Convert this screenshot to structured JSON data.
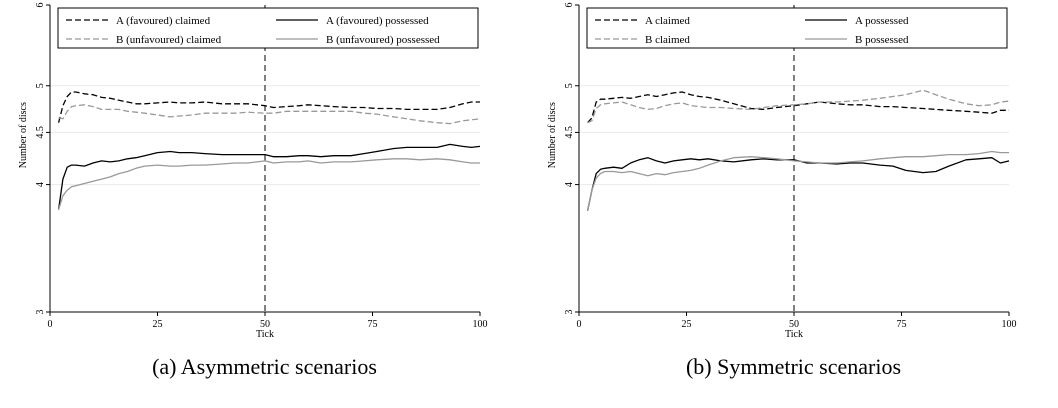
{
  "captions": [
    "(a) Asymmetric scenarios",
    "(b) Symmetric scenarios"
  ],
  "chart_data": [
    {
      "type": "line",
      "xlabel": "Tick",
      "ylabel": "Number of discs",
      "xlim": [
        0,
        100
      ],
      "ylim": [
        3,
        6
      ],
      "y_scale": "log",
      "xticks": [
        0,
        25,
        50,
        75,
        100
      ],
      "yticks": [
        3,
        4,
        4.5,
        5,
        6
      ],
      "grid": true,
      "legend_placement": "top",
      "reference_line": {
        "x": 50,
        "style": "dashed",
        "color": "#000000"
      },
      "series": [
        {
          "name": "A (favoured) claimed",
          "color": "#000000",
          "dash": "dashed",
          "x": [
            2,
            3,
            4,
            5,
            6,
            8,
            10,
            12,
            14,
            16,
            18,
            20,
            22,
            25,
            28,
            30,
            33,
            36,
            40,
            43,
            46,
            50,
            52,
            55,
            58,
            60,
            63,
            66,
            70,
            73,
            76,
            80,
            83,
            86,
            90,
            93,
            96,
            98,
            100
          ],
          "values": [
            4.6,
            4.78,
            4.88,
            4.93,
            4.93,
            4.91,
            4.9,
            4.87,
            4.86,
            4.84,
            4.82,
            4.8,
            4.8,
            4.81,
            4.82,
            4.81,
            4.81,
            4.82,
            4.8,
            4.8,
            4.8,
            4.78,
            4.76,
            4.77,
            4.78,
            4.79,
            4.78,
            4.77,
            4.76,
            4.76,
            4.75,
            4.75,
            4.74,
            4.74,
            4.74,
            4.76,
            4.8,
            4.82,
            4.82
          ]
        },
        {
          "name": "B (unfavoured) claimed",
          "color": "#999999",
          "dash": "dashed",
          "x": [
            2,
            3,
            4,
            5,
            6,
            8,
            10,
            12,
            14,
            16,
            18,
            20,
            22,
            25,
            28,
            30,
            33,
            36,
            40,
            43,
            46,
            50,
            52,
            55,
            58,
            60,
            63,
            66,
            70,
            73,
            76,
            80,
            83,
            86,
            90,
            93,
            96,
            98,
            100
          ],
          "values": [
            4.65,
            4.64,
            4.72,
            4.77,
            4.78,
            4.79,
            4.77,
            4.74,
            4.74,
            4.74,
            4.72,
            4.71,
            4.7,
            4.68,
            4.66,
            4.67,
            4.68,
            4.7,
            4.7,
            4.7,
            4.71,
            4.7,
            4.7,
            4.72,
            4.72,
            4.72,
            4.72,
            4.72,
            4.72,
            4.7,
            4.69,
            4.66,
            4.64,
            4.62,
            4.6,
            4.59,
            4.62,
            4.63,
            4.64
          ]
        },
        {
          "name": "A (favoured) possessed",
          "color": "#000000",
          "dash": "solid",
          "x": [
            2,
            3,
            4,
            5,
            6,
            8,
            10,
            12,
            14,
            16,
            18,
            20,
            22,
            25,
            28,
            30,
            33,
            36,
            40,
            43,
            46,
            50,
            52,
            55,
            58,
            60,
            63,
            66,
            70,
            73,
            76,
            80,
            83,
            86,
            90,
            93,
            96,
            98,
            100
          ],
          "values": [
            3.78,
            4.05,
            4.16,
            4.18,
            4.18,
            4.17,
            4.2,
            4.22,
            4.21,
            4.22,
            4.24,
            4.25,
            4.27,
            4.3,
            4.31,
            4.3,
            4.3,
            4.29,
            4.28,
            4.28,
            4.28,
            4.28,
            4.26,
            4.26,
            4.27,
            4.27,
            4.26,
            4.27,
            4.27,
            4.29,
            4.31,
            4.34,
            4.35,
            4.35,
            4.35,
            4.38,
            4.36,
            4.35,
            4.36
          ]
        },
        {
          "name": "B (unfavoured) possessed",
          "color": "#999999",
          "dash": "solid",
          "x": [
            2,
            3,
            4,
            5,
            6,
            8,
            10,
            12,
            14,
            16,
            18,
            20,
            22,
            25,
            28,
            30,
            33,
            36,
            40,
            43,
            46,
            50,
            52,
            55,
            58,
            60,
            63,
            66,
            70,
            73,
            76,
            80,
            83,
            86,
            90,
            93,
            96,
            98,
            100
          ],
          "values": [
            3.78,
            3.9,
            3.95,
            3.98,
            3.99,
            4.01,
            4.03,
            4.05,
            4.07,
            4.1,
            4.12,
            4.15,
            4.17,
            4.18,
            4.17,
            4.17,
            4.18,
            4.18,
            4.19,
            4.2,
            4.2,
            4.22,
            4.2,
            4.21,
            4.21,
            4.22,
            4.2,
            4.21,
            4.21,
            4.22,
            4.23,
            4.24,
            4.24,
            4.23,
            4.24,
            4.23,
            4.21,
            4.2,
            4.2
          ]
        }
      ]
    },
    {
      "type": "line",
      "xlabel": "Tick",
      "ylabel": "Number of discs",
      "xlim": [
        0,
        100
      ],
      "ylim": [
        3,
        6
      ],
      "y_scale": "log",
      "xticks": [
        0,
        25,
        50,
        75,
        100
      ],
      "yticks": [
        3,
        4,
        4.5,
        5,
        6
      ],
      "grid": true,
      "legend_placement": "top",
      "reference_line": {
        "x": 50,
        "style": "dashed",
        "color": "#000000"
      },
      "series": [
        {
          "name": "A claimed",
          "color": "#000000",
          "dash": "dashed",
          "x": [
            2,
            3,
            4,
            5,
            6,
            8,
            10,
            12,
            14,
            16,
            18,
            20,
            22,
            24,
            26,
            28,
            30,
            33,
            36,
            40,
            43,
            46,
            50,
            53,
            56,
            60,
            63,
            66,
            70,
            73,
            76,
            80,
            83,
            86,
            90,
            93,
            96,
            98,
            100
          ],
          "values": [
            4.6,
            4.65,
            4.82,
            4.85,
            4.85,
            4.86,
            4.87,
            4.86,
            4.88,
            4.9,
            4.88,
            4.9,
            4.92,
            4.93,
            4.9,
            4.88,
            4.87,
            4.84,
            4.8,
            4.75,
            4.74,
            4.76,
            4.78,
            4.8,
            4.82,
            4.8,
            4.79,
            4.79,
            4.77,
            4.77,
            4.76,
            4.75,
            4.74,
            4.73,
            4.72,
            4.71,
            4.7,
            4.73,
            4.73
          ]
        },
        {
          "name": "B claimed",
          "color": "#999999",
          "dash": "dashed",
          "x": [
            2,
            3,
            4,
            5,
            6,
            8,
            10,
            12,
            14,
            16,
            18,
            20,
            22,
            24,
            26,
            28,
            30,
            33,
            36,
            40,
            43,
            46,
            50,
            53,
            56,
            60,
            63,
            66,
            70,
            73,
            76,
            80,
            83,
            86,
            90,
            93,
            96,
            98,
            100
          ],
          "values": [
            4.6,
            4.62,
            4.75,
            4.79,
            4.8,
            4.81,
            4.82,
            4.79,
            4.76,
            4.74,
            4.75,
            4.78,
            4.8,
            4.81,
            4.78,
            4.77,
            4.76,
            4.76,
            4.75,
            4.74,
            4.76,
            4.78,
            4.79,
            4.8,
            4.82,
            4.82,
            4.83,
            4.84,
            4.86,
            4.88,
            4.9,
            4.95,
            4.9,
            4.85,
            4.8,
            4.78,
            4.79,
            4.82,
            4.83
          ]
        },
        {
          "name": "A possessed",
          "color": "#000000",
          "dash": "solid",
          "x": [
            2,
            3,
            4,
            5,
            6,
            8,
            10,
            12,
            14,
            16,
            18,
            20,
            22,
            24,
            26,
            28,
            30,
            33,
            36,
            40,
            43,
            46,
            50,
            53,
            56,
            60,
            63,
            66,
            70,
            73,
            76,
            80,
            83,
            86,
            90,
            93,
            96,
            98,
            100
          ],
          "values": [
            3.77,
            3.95,
            4.1,
            4.14,
            4.15,
            4.16,
            4.15,
            4.2,
            4.23,
            4.25,
            4.22,
            4.2,
            4.22,
            4.23,
            4.24,
            4.23,
            4.24,
            4.22,
            4.21,
            4.23,
            4.24,
            4.23,
            4.23,
            4.2,
            4.2,
            4.19,
            4.2,
            4.2,
            4.18,
            4.17,
            4.13,
            4.11,
            4.12,
            4.17,
            4.23,
            4.24,
            4.25,
            4.2,
            4.22
          ]
        },
        {
          "name": "B possessed",
          "color": "#999999",
          "dash": "solid",
          "x": [
            2,
            3,
            4,
            5,
            6,
            8,
            10,
            12,
            14,
            16,
            18,
            20,
            22,
            24,
            26,
            28,
            30,
            33,
            36,
            40,
            43,
            46,
            50,
            53,
            56,
            60,
            63,
            66,
            70,
            73,
            76,
            80,
            83,
            86,
            90,
            93,
            96,
            98,
            100
          ],
          "values": [
            3.77,
            3.95,
            4.06,
            4.1,
            4.12,
            4.12,
            4.11,
            4.12,
            4.1,
            4.08,
            4.1,
            4.09,
            4.11,
            4.12,
            4.13,
            4.15,
            4.18,
            4.22,
            4.25,
            4.26,
            4.25,
            4.24,
            4.22,
            4.21,
            4.2,
            4.2,
            4.21,
            4.22,
            4.24,
            4.25,
            4.26,
            4.26,
            4.27,
            4.28,
            4.28,
            4.29,
            4.31,
            4.3,
            4.3
          ]
        }
      ]
    }
  ]
}
